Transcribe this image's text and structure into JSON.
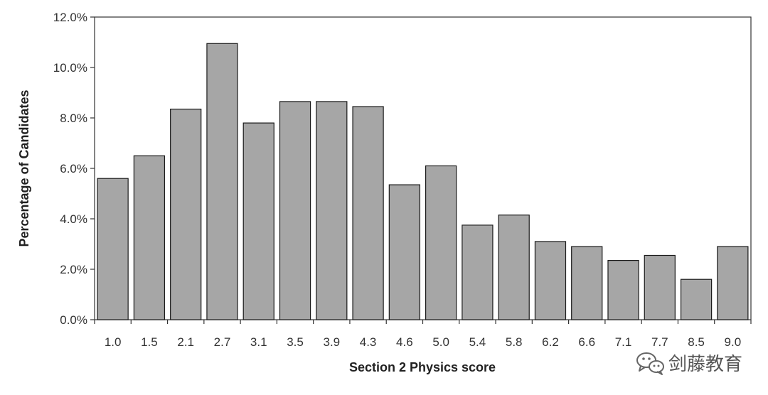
{
  "chart_data": {
    "type": "bar",
    "title": "",
    "xlabel": "Section 2 Physics score",
    "ylabel": "Percentage of Candidates",
    "categories": [
      "1.0",
      "1.5",
      "2.1",
      "2.7",
      "3.1",
      "3.5",
      "3.9",
      "4.3",
      "4.6",
      "5.0",
      "5.4",
      "5.8",
      "6.2",
      "6.6",
      "7.1",
      "7.7",
      "8.5",
      "9.0"
    ],
    "values": [
      5.6,
      6.5,
      8.35,
      10.95,
      7.8,
      8.65,
      8.65,
      8.45,
      5.35,
      6.1,
      3.75,
      4.15,
      3.1,
      2.9,
      2.35,
      2.55,
      1.6,
      2.9
    ],
    "ylim": [
      0,
      12
    ],
    "yticks": [
      "0.0%",
      "2.0%",
      "4.0%",
      "6.0%",
      "8.0%",
      "10.0%",
      "12.0%"
    ],
    "grid": false,
    "legend": "none",
    "bar_color": "#a6a6a6",
    "bar_edge_color": "#1a1a1a"
  },
  "watermark": {
    "text": "剑藤教育",
    "icon": "wechat-icon"
  }
}
